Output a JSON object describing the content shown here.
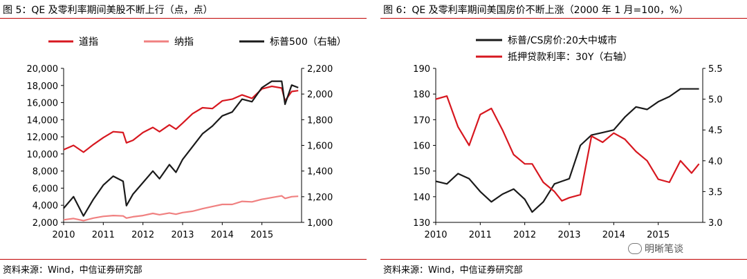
{
  "panels": [
    {
      "title": "图 5：QE 及零利率期间美股不断上行（点，点）",
      "source": "资料来源：Wind，中信证券研究部"
    },
    {
      "title": "图 6：QE 及零利率期间美国房价不断上涨（2000 年 1 月=100，%）",
      "source": "资料来源：Wind，中信证券研究部"
    }
  ],
  "watermark": "明晰笔谈",
  "colors": {
    "red": "#d7171f",
    "pink": "#f08080",
    "black": "#1a1a1a",
    "rule": "#c00000"
  },
  "chart_data": [
    {
      "type": "line",
      "x": [
        "2010-01",
        "2010-04",
        "2010-07",
        "2010-10",
        "2011-01",
        "2011-04",
        "2011-07",
        "2011-08",
        "2011-10",
        "2012-01",
        "2012-04",
        "2012-06",
        "2012-09",
        "2012-11",
        "2013-01",
        "2013-04",
        "2013-07",
        "2013-10",
        "2014-01",
        "2014-04",
        "2014-07",
        "2014-10",
        "2015-01",
        "2015-04",
        "2015-07",
        "2015-08",
        "2015-10",
        "2015-12"
      ],
      "series": [
        {
          "name": "道指",
          "axis": "left",
          "color": "#d7171f",
          "values": [
            10500,
            11000,
            10200,
            11100,
            11900,
            12600,
            12500,
            11300,
            11600,
            12500,
            13100,
            12600,
            13400,
            12900,
            13600,
            14700,
            15400,
            15300,
            16200,
            16400,
            16900,
            16500,
            17600,
            17900,
            17700,
            16200,
            17300,
            17400
          ]
        },
        {
          "name": "纳指",
          "axis": "left",
          "color": "#f08080",
          "values": [
            2300,
            2450,
            2200,
            2500,
            2700,
            2800,
            2750,
            2500,
            2650,
            2800,
            3050,
            2900,
            3100,
            2950,
            3150,
            3300,
            3600,
            3850,
            4100,
            4100,
            4450,
            4400,
            4700,
            4900,
            5100,
            4800,
            5000,
            5050
          ]
        },
        {
          "name": "标普500（右轴）",
          "axis": "right",
          "color": "#1a1a1a",
          "values": [
            1110,
            1200,
            1050,
            1180,
            1290,
            1360,
            1320,
            1130,
            1220,
            1310,
            1400,
            1340,
            1450,
            1390,
            1490,
            1590,
            1690,
            1750,
            1830,
            1860,
            1960,
            1940,
            2050,
            2100,
            2100,
            1920,
            2070,
            2050
          ]
        }
      ],
      "xlabel": "",
      "ylabel": "",
      "y_left": {
        "lim": [
          2000,
          20000
        ],
        "ticks": [
          "2,000",
          "4,000",
          "6,000",
          "8,000",
          "10,000",
          "12,000",
          "14,000",
          "16,000",
          "18,000",
          "20,000"
        ]
      },
      "y_right": {
        "lim": [
          1000,
          2200
        ],
        "ticks": [
          "1,000",
          "1,200",
          "1,400",
          "1,600",
          "1,800",
          "2,000",
          "2,200"
        ]
      },
      "x_ticks": [
        "2010",
        "2011",
        "2012",
        "2013",
        "2014",
        "2015"
      ],
      "legend_position": "top"
    },
    {
      "type": "line",
      "x": [
        "2010-01",
        "2010-04",
        "2010-07",
        "2010-10",
        "2011-01",
        "2011-04",
        "2011-07",
        "2011-10",
        "2012-01",
        "2012-03",
        "2012-06",
        "2012-09",
        "2012-11",
        "2013-01",
        "2013-04",
        "2013-07",
        "2013-10",
        "2014-01",
        "2014-04",
        "2014-07",
        "2014-10",
        "2015-01",
        "2015-04",
        "2015-07",
        "2015-10",
        "2015-12"
      ],
      "series": [
        {
          "name": "标普/CS房价:20大中城市",
          "axis": "left",
          "color": "#1a1a1a",
          "values": [
            146,
            145,
            149,
            147,
            142,
            138,
            141,
            143,
            139,
            134,
            138,
            145,
            146,
            147,
            160,
            164,
            165,
            166,
            171,
            175,
            174,
            177,
            179,
            182,
            182,
            182
          ]
        },
        {
          "name": "抵押贷款利率：30Y（右轴）",
          "axis": "right",
          "color": "#d7171f",
          "values": [
            5.0,
            5.05,
            4.55,
            4.25,
            4.75,
            4.85,
            4.5,
            4.1,
            3.95,
            3.95,
            3.65,
            3.5,
            3.35,
            3.4,
            3.45,
            4.4,
            4.3,
            4.45,
            4.35,
            4.15,
            4.0,
            3.7,
            3.65,
            4.0,
            3.8,
            3.95
          ]
        }
      ],
      "xlabel": "",
      "ylabel": "",
      "y_left": {
        "lim": [
          130,
          190
        ],
        "ticks": [
          "130",
          "140",
          "150",
          "160",
          "170",
          "180",
          "190"
        ]
      },
      "y_right": {
        "lim": [
          3.0,
          5.5
        ],
        "ticks": [
          "3.0",
          "3.5",
          "4.0",
          "4.5",
          "5.0",
          "5.5"
        ]
      },
      "x_ticks": [
        "2010",
        "2011",
        "2012",
        "2013",
        "2014",
        "2015"
      ],
      "legend_position": "top-left"
    }
  ]
}
